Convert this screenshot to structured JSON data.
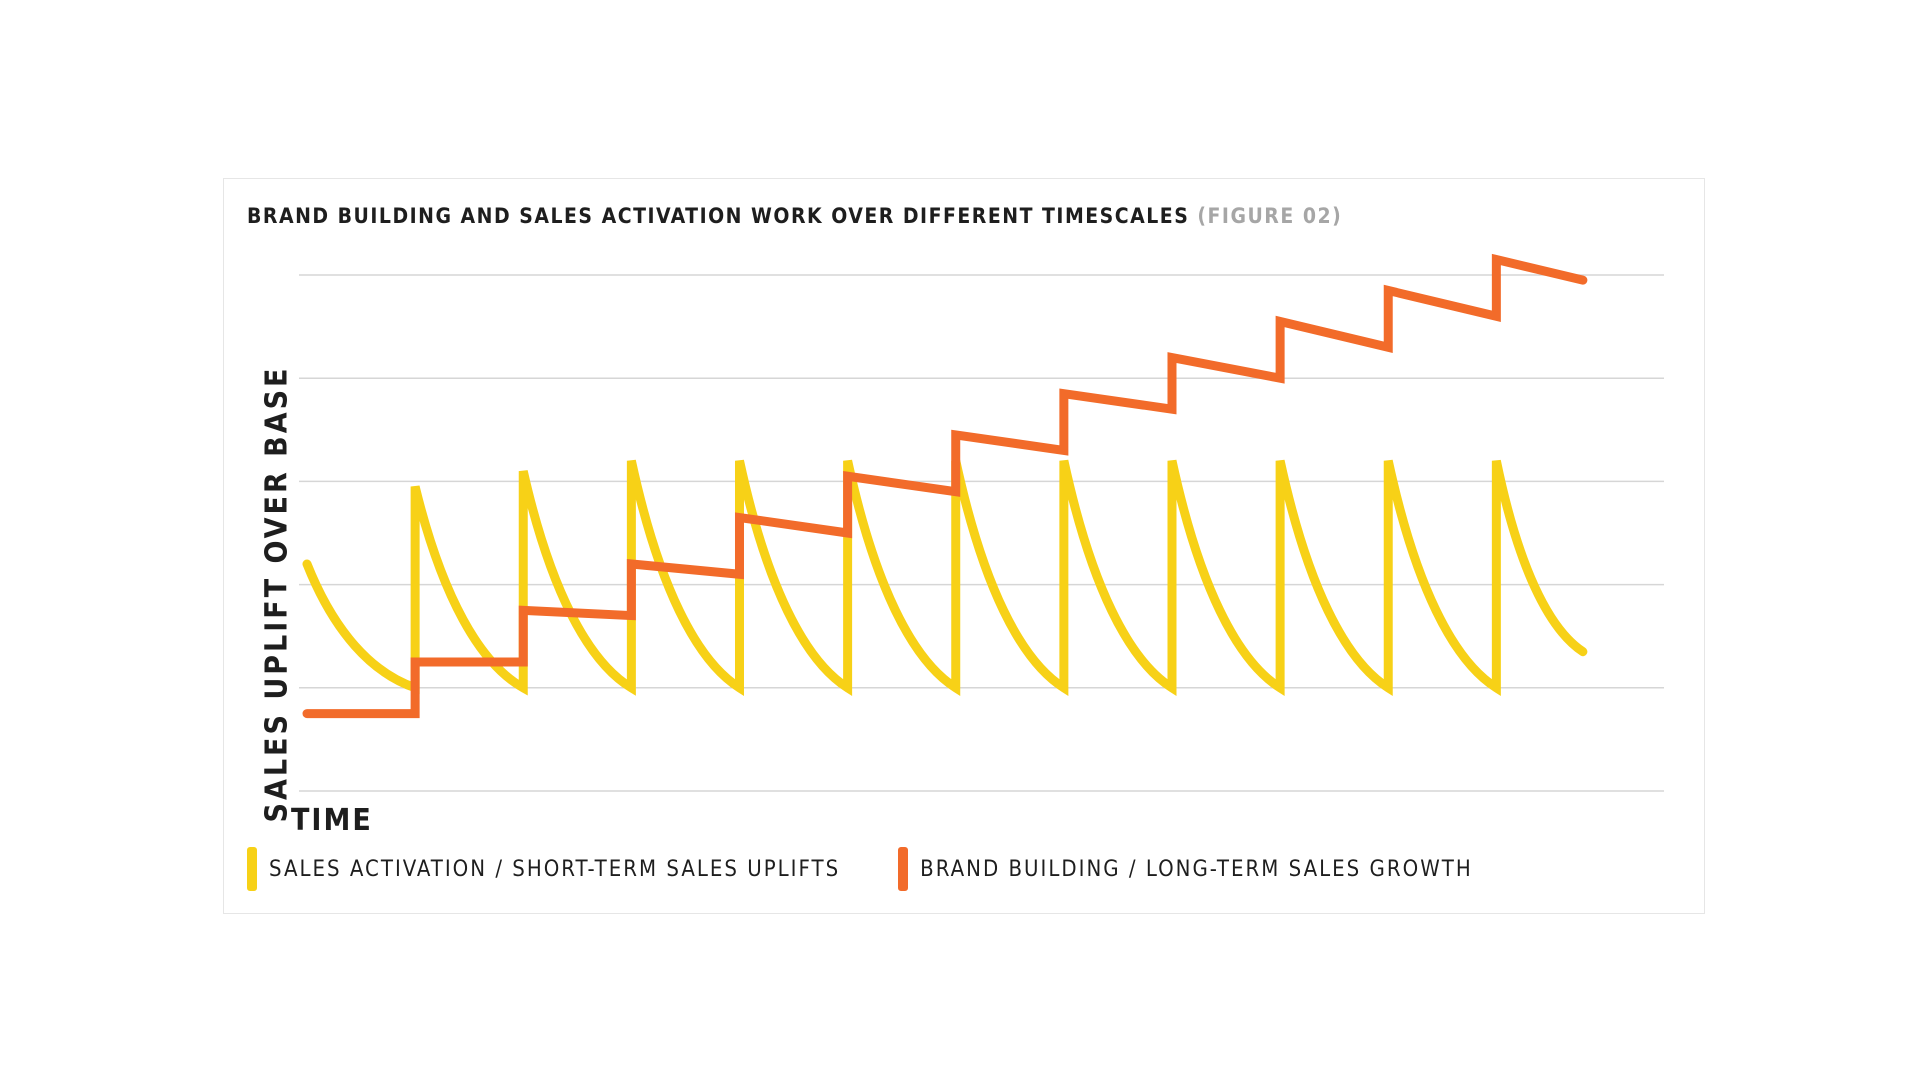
{
  "chart_data": {
    "type": "line",
    "title": "BRAND BUILDING AND SALES ACTIVATION WORK OVER DIFFERENT TIMESCALES",
    "title_note": "(FIGURE 02)",
    "xlabel": "TIME",
    "ylabel": "SALES UPLIFT OVER BASE",
    "grid": true,
    "ylim": [
      0,
      5
    ],
    "xlim": [
      0,
      12
    ],
    "legend_position": "bottom-left",
    "series": [
      {
        "name": "SALES ACTIVATION / SHORT-TERM SALES UPLIFTS",
        "color": "#f7d117",
        "points": [
          [
            0.0,
            2.2
          ],
          [
            1.0,
            1.0
          ],
          [
            1.0,
            2.95
          ],
          [
            2.0,
            1.0
          ],
          [
            2.0,
            3.1
          ],
          [
            3.0,
            1.0
          ],
          [
            3.0,
            3.2
          ],
          [
            4.0,
            1.0
          ],
          [
            4.0,
            3.2
          ],
          [
            5.0,
            1.0
          ],
          [
            5.0,
            3.2
          ],
          [
            6.0,
            1.0
          ],
          [
            6.0,
            3.2
          ],
          [
            7.0,
            1.0
          ],
          [
            7.0,
            3.2
          ],
          [
            8.0,
            1.0
          ],
          [
            8.0,
            3.2
          ],
          [
            9.0,
            1.0
          ],
          [
            9.0,
            3.2
          ],
          [
            10.0,
            1.0
          ],
          [
            10.0,
            3.2
          ],
          [
            11.0,
            1.0
          ],
          [
            11.0,
            3.2
          ],
          [
            11.8,
            1.35
          ]
        ]
      },
      {
        "name": "BRAND BUILDING / LONG-TERM SALES GROWTH",
        "color": "#f26b2a",
        "points": [
          [
            0.0,
            0.75
          ],
          [
            1.0,
            0.75
          ],
          [
            1.0,
            1.25
          ],
          [
            2.0,
            1.25
          ],
          [
            2.0,
            1.75
          ],
          [
            3.0,
            1.7
          ],
          [
            3.0,
            2.2
          ],
          [
            4.0,
            2.1
          ],
          [
            4.0,
            2.65
          ],
          [
            5.0,
            2.5
          ],
          [
            5.0,
            3.05
          ],
          [
            6.0,
            2.9
          ],
          [
            6.0,
            3.45
          ],
          [
            7.0,
            3.3
          ],
          [
            7.0,
            3.85
          ],
          [
            8.0,
            3.7
          ],
          [
            8.0,
            4.2
          ],
          [
            9.0,
            4.0
          ],
          [
            9.0,
            4.55
          ],
          [
            10.0,
            4.3
          ],
          [
            10.0,
            4.85
          ],
          [
            11.0,
            4.6
          ],
          [
            11.0,
            5.15
          ],
          [
            11.8,
            4.95
          ]
        ]
      }
    ]
  },
  "colors": {
    "grid": "#d6d6d6",
    "text": "#1e1e1e",
    "title_note": "#a6a6a6"
  }
}
